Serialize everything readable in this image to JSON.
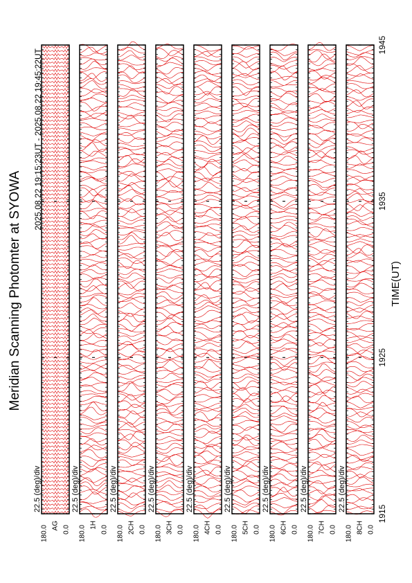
{
  "chart_data": {
    "type": "scan-stack",
    "title": "Meridian Scanning Photomter at SYOWA",
    "subtitle": "2025.08.22 19:15:23UT - 2025.08.22 19:45:22UT",
    "x_label": "TIME(UT)",
    "xlim": [
      1915,
      1945
    ],
    "xticks": [
      1915,
      1925,
      1935,
      1945
    ],
    "color": "#e00000",
    "panels": [
      {
        "channel": "AG",
        "scale": "22.5 (deg)/div",
        "top": "180.0",
        "bottom": "0.0"
      },
      {
        "channel": "1H",
        "scale": "22.5 (deg)/div",
        "top": "180.0",
        "bottom": "0.0"
      },
      {
        "channel": "2CH",
        "scale": "22.5 (deg)/div",
        "top": "180.0",
        "bottom": "0.0"
      },
      {
        "channel": "3CH",
        "scale": "22.5 (deg)/div",
        "top": "180.0",
        "bottom": "0.0"
      },
      {
        "channel": "4CH",
        "scale": "22.5 (deg)/div",
        "top": "180.0",
        "bottom": "0.0"
      },
      {
        "channel": "5CH",
        "scale": "22.5 (deg)/div",
        "top": "180.0",
        "bottom": "0.0"
      },
      {
        "channel": "6CH",
        "scale": "22.5 (deg)/div",
        "top": "180.0",
        "bottom": "0.0"
      },
      {
        "channel": "7CH",
        "scale": "22.5 (deg)/div",
        "top": "180.0",
        "bottom": "0.0"
      },
      {
        "channel": "8CH",
        "scale": "22.5 (deg)/div",
        "top": "180.0",
        "bottom": "0.0"
      }
    ]
  }
}
